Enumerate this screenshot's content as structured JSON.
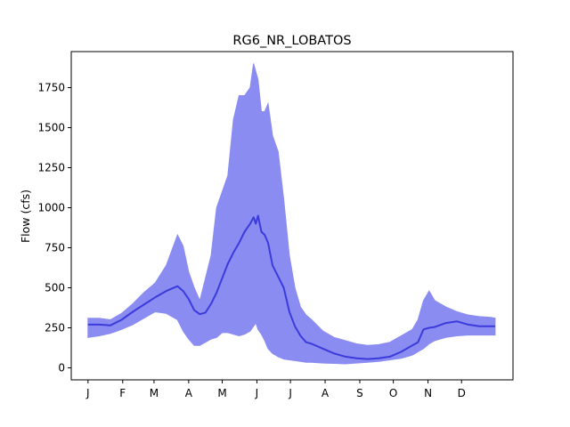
{
  "chart_data": {
    "type": "area",
    "title": "RG6_NR_LOBATOS",
    "xlabel": "",
    "ylabel": "Flow (cfs)",
    "xlim": [
      -15,
      380
    ],
    "ylim": [
      -75,
      1975
    ],
    "x_ticks": [
      {
        "day": 0,
        "label": "J"
      },
      {
        "day": 31,
        "label": "F"
      },
      {
        "day": 59,
        "label": "M"
      },
      {
        "day": 90,
        "label": "A"
      },
      {
        "day": 120,
        "label": "M"
      },
      {
        "day": 151,
        "label": "J"
      },
      {
        "day": 181,
        "label": "J"
      },
      {
        "day": 212,
        "label": "A"
      },
      {
        "day": 243,
        "label": "S"
      },
      {
        "day": 273,
        "label": "O"
      },
      {
        "day": 304,
        "label": "N"
      },
      {
        "day": 334,
        "label": "D"
      }
    ],
    "y_ticks": [
      0,
      250,
      500,
      750,
      1000,
      1250,
      1500,
      1750
    ],
    "grid": false,
    "series_color": "#3b3bdc",
    "band_color": "#8a8cf2",
    "x": [
      0,
      10,
      20,
      30,
      40,
      50,
      60,
      70,
      80,
      85,
      90,
      95,
      100,
      105,
      110,
      115,
      120,
      125,
      130,
      135,
      140,
      145,
      148,
      150,
      152,
      155,
      158,
      161,
      165,
      170,
      175,
      180,
      185,
      190,
      195,
      200,
      210,
      220,
      230,
      240,
      250,
      260,
      270,
      280,
      290,
      295,
      300,
      305,
      310,
      320,
      330,
      340,
      350,
      360,
      364
    ],
    "median": [
      270,
      270,
      265,
      300,
      350,
      395,
      440,
      480,
      510,
      480,
      430,
      360,
      335,
      345,
      400,
      470,
      560,
      650,
      720,
      780,
      850,
      900,
      940,
      900,
      950,
      850,
      830,
      780,
      640,
      570,
      500,
      350,
      260,
      200,
      160,
      150,
      120,
      90,
      70,
      60,
      55,
      60,
      70,
      100,
      140,
      160,
      240,
      250,
      255,
      280,
      290,
      270,
      260,
      260,
      260
    ],
    "upper": [
      310,
      310,
      300,
      340,
      400,
      470,
      530,
      640,
      830,
      760,
      600,
      500,
      420,
      560,
      700,
      1000,
      1100,
      1200,
      1550,
      1700,
      1700,
      1750,
      1900,
      1850,
      1800,
      1600,
      1600,
      1650,
      1450,
      1350,
      1050,
      700,
      500,
      380,
      330,
      300,
      230,
      190,
      170,
      150,
      140,
      145,
      160,
      200,
      240,
      300,
      420,
      480,
      420,
      380,
      350,
      330,
      320,
      315,
      310
    ],
    "lower": [
      190,
      200,
      215,
      240,
      270,
      310,
      350,
      340,
      300,
      230,
      180,
      140,
      140,
      160,
      180,
      190,
      220,
      220,
      210,
      200,
      210,
      230,
      260,
      280,
      240,
      210,
      170,
      120,
      90,
      70,
      55,
      50,
      45,
      40,
      35,
      35,
      30,
      28,
      25,
      30,
      35,
      40,
      50,
      60,
      80,
      100,
      120,
      150,
      170,
      190,
      200,
      205,
      205,
      205,
      205
    ]
  }
}
